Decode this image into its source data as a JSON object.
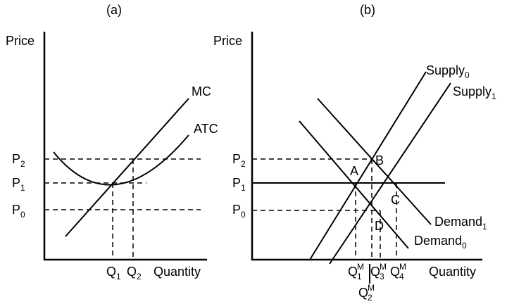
{
  "panel_a": {
    "caption": "(a)",
    "y_axis_label": "Price",
    "x_axis_label": "Quantity",
    "curves": {
      "mc": "MC",
      "atc": "ATC"
    },
    "price_labels": [
      {
        "base": "P",
        "sub": "2"
      },
      {
        "base": "P",
        "sub": "1"
      },
      {
        "base": "P",
        "sub": "0"
      }
    ],
    "quantity_labels": [
      {
        "base": "Q",
        "sub": "1"
      },
      {
        "base": "Q",
        "sub": "2"
      }
    ]
  },
  "panel_b": {
    "caption": "(b)",
    "y_axis_label": "Price",
    "x_axis_label": "Quantity",
    "curves": {
      "supply0": {
        "base": "Supply",
        "sub": "0"
      },
      "supply1": {
        "base": "Supply",
        "sub": "1"
      },
      "demand1": {
        "base": "Demand",
        "sub": "1"
      },
      "demand0": {
        "base": "Demand",
        "sub": "0"
      }
    },
    "price_labels": [
      {
        "base": "P",
        "sub": "2"
      },
      {
        "base": "P",
        "sub": "1"
      },
      {
        "base": "P",
        "sub": "0"
      }
    ],
    "points": {
      "a": "A",
      "b": "B",
      "c": "C",
      "d": "D"
    },
    "quantity_labels": [
      {
        "base": "Q",
        "sub": "1",
        "sup": "M"
      },
      {
        "base": "Q",
        "sub": "3",
        "sup": "M"
      },
      {
        "base": "Q",
        "sub": "4",
        "sup": "M"
      },
      {
        "base": "Q",
        "sub": "2",
        "sup": "M"
      }
    ]
  }
}
